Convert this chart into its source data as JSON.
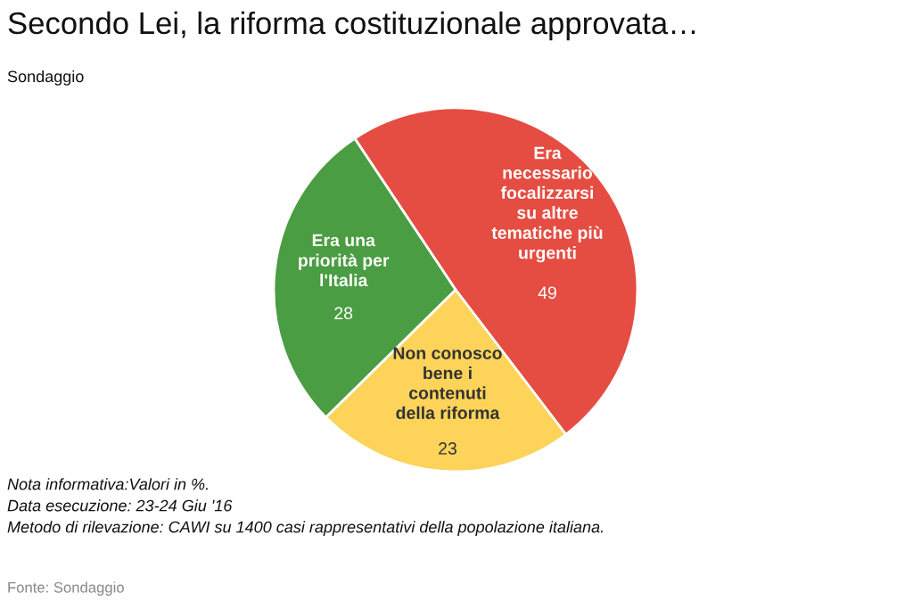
{
  "chart_data": {
    "type": "pie",
    "title": "Secondo Lei, la riforma costituzionale approvata…",
    "subtitle": "Sondaggio",
    "categories": [
      "Era necessario focalizzarsi su altre tematiche più urgenti",
      "Non conosco bene i contenuti della riforma",
      "Era una priorità per l'Italia"
    ],
    "values": [
      49,
      23,
      28
    ],
    "colors": [
      "#e54d42",
      "#fdd459",
      "#4a9d42"
    ],
    "data_labels": true,
    "legend": false,
    "annotations": [
      "Nota informativa:Valori in %.",
      "Data esecuzione: 23-24 Giu '16",
      "Metodo di rilevazione: CAWI su 1400 casi rappresentativi della popolazione italiana.",
      "Fonte: Sondaggio"
    ]
  }
}
